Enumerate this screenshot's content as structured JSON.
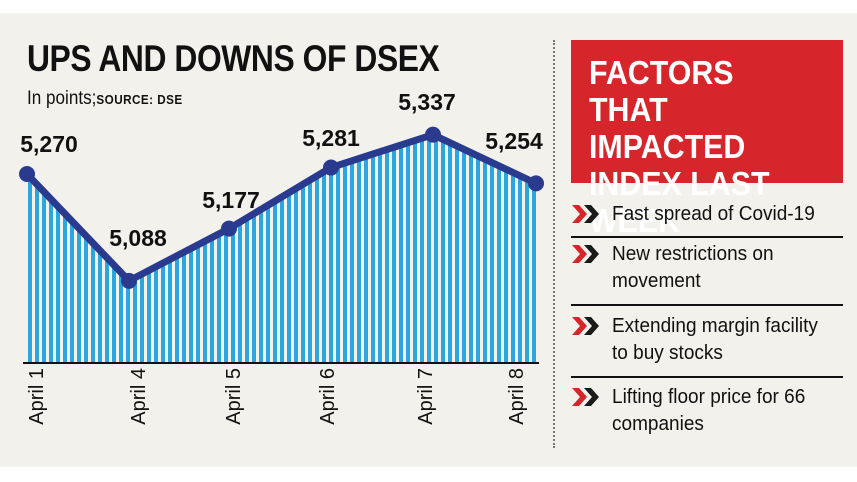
{
  "chart_data": {
    "type": "area",
    "title": "UPS AND DOWNS OF DSEX",
    "unit_note": "In points;",
    "source": "SOURCE: DSE",
    "categories": [
      "April 1",
      "April 4",
      "April 5",
      "April 6",
      "April 7",
      "April 8"
    ],
    "values": [
      5270,
      5088,
      5177,
      5281,
      5337,
      5254
    ],
    "value_labels": [
      "5,270",
      "5,088",
      "5,177",
      "5,281",
      "5,337",
      "5,254"
    ],
    "ylabel": "Points",
    "xlabel": "",
    "ylim": [
      5000,
      5360
    ],
    "grid": false
  },
  "colors": {
    "line": "#2a3b8f",
    "bar": "#2aa7df",
    "accent": "#d6262b"
  },
  "sidebar": {
    "title": "FACTORS THAT IMPACTED INDEX LAST WEEK",
    "items": [
      "Fast spread of Covid-19",
      "New restrictions on movement",
      "Extending margin facility to buy stocks",
      "Lifting floor price for 66 companies"
    ]
  }
}
